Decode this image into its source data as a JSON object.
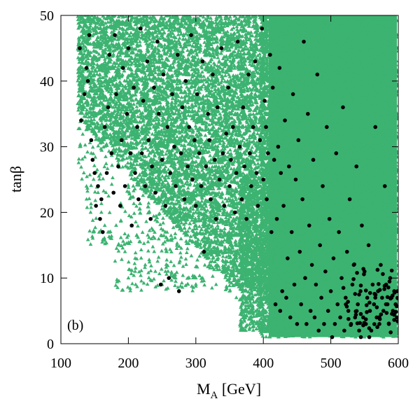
{
  "chart_data": {
    "type": "scatter",
    "title": "",
    "panel_label": "(b)",
    "xlabel": {
      "main": "M",
      "sub": "A",
      "suffix": " [GeV]"
    },
    "ylabel": {
      "main": "tan",
      "suffix": "β"
    },
    "xlim": [
      100,
      600
    ],
    "ylim": [
      0,
      50
    ],
    "x_ticks": [
      100,
      200,
      300,
      400,
      500,
      600
    ],
    "y_ticks": [
      0,
      10,
      20,
      30,
      40,
      50
    ],
    "grid": false,
    "legend": "none",
    "colors": {
      "green": "#3cb371",
      "black": "#000000"
    },
    "series": [
      {
        "marker": "triangle",
        "color": "#3cb371",
        "description_regions": [
          {
            "x": [
              125,
              430
            ],
            "y": [
              25,
              50
            ]
          },
          {
            "x": [
              135,
              430
            ],
            "y": [
              15,
              25
            ]
          },
          {
            "x": [
              180,
              420
            ],
            "y": [
              8,
              15
            ]
          },
          {
            "x": [
              395,
              600
            ],
            "y": [
              1,
              50
            ]
          },
          {
            "x": [
              365,
              430
            ],
            "y": [
              2,
              25
            ]
          }
        ],
        "dense_fill_region": {
          "x": [
            408,
            598
          ],
          "y": [
            1,
            50
          ]
        },
        "points": [
          [
            128,
            45
          ],
          [
            132,
            42
          ],
          [
            136,
            38
          ],
          [
            140,
            33
          ],
          [
            145,
            29
          ],
          [
            150,
            26
          ],
          [
            155,
            23
          ],
          [
            160,
            20
          ],
          [
            165,
            18
          ],
          [
            170,
            17
          ],
          [
            175,
            16
          ],
          [
            185,
            15
          ],
          [
            195,
            14
          ],
          [
            210,
            13
          ],
          [
            225,
            12
          ],
          [
            240,
            11
          ],
          [
            255,
            11
          ],
          [
            270,
            10
          ],
          [
            290,
            10
          ],
          [
            310,
            10
          ],
          [
            330,
            9
          ],
          [
            350,
            8
          ],
          [
            370,
            6
          ],
          [
            380,
            4
          ],
          [
            390,
            3
          ],
          [
            395,
            2
          ],
          [
            200,
            10
          ],
          [
            210,
            11
          ],
          [
            250,
            9
          ],
          [
            300,
            10
          ],
          [
            320,
            12
          ],
          [
            340,
            11
          ],
          [
            360,
            7
          ],
          [
            130,
            34
          ],
          [
            128,
            30
          ],
          [
            134,
            26
          ],
          [
            138,
            22
          ],
          [
            144,
            20
          ],
          [
            148,
            17
          ],
          [
            200,
            48
          ],
          [
            220,
            49
          ],
          [
            260,
            50
          ],
          [
            300,
            49
          ],
          [
            340,
            48
          ],
          [
            380,
            49
          ],
          [
            410,
            50
          ],
          [
            150,
            49
          ],
          [
            170,
            50
          ],
          [
            190,
            47
          ]
        ]
      },
      {
        "marker": "circle",
        "color": "#000000",
        "points": [
          [
            128,
            45
          ],
          [
            130,
            34
          ],
          [
            135,
            38
          ],
          [
            138,
            42
          ],
          [
            140,
            40
          ],
          [
            142,
            47
          ],
          [
            145,
            31
          ],
          [
            147,
            28
          ],
          [
            150,
            26
          ],
          [
            152,
            21
          ],
          [
            155,
            24
          ],
          [
            158,
            19
          ],
          [
            160,
            22
          ],
          [
            162,
            17
          ],
          [
            165,
            33
          ],
          [
            168,
            26
          ],
          [
            170,
            36
          ],
          [
            172,
            44
          ],
          [
            175,
            29
          ],
          [
            178,
            23
          ],
          [
            180,
            47
          ],
          [
            182,
            38
          ],
          [
            185,
            27
          ],
          [
            188,
            21
          ],
          [
            190,
            31
          ],
          [
            192,
            42
          ],
          [
            195,
            24
          ],
          [
            198,
            35
          ],
          [
            200,
            45
          ],
          [
            203,
            29
          ],
          [
            205,
            18
          ],
          [
            208,
            39
          ],
          [
            210,
            26
          ],
          [
            213,
            33
          ],
          [
            215,
            22
          ],
          [
            218,
            48
          ],
          [
            220,
            29
          ],
          [
            222,
            37
          ],
          [
            225,
            24
          ],
          [
            228,
            43
          ],
          [
            230,
            31
          ],
          [
            233,
            19
          ],
          [
            235,
            27
          ],
          [
            238,
            39
          ],
          [
            240,
            23
          ],
          [
            243,
            46
          ],
          [
            245,
            35
          ],
          [
            248,
            9
          ],
          [
            250,
            28
          ],
          [
            252,
            41
          ],
          [
            255,
            21
          ],
          [
            258,
            33
          ],
          [
            260,
            10
          ],
          [
            262,
            26
          ],
          [
            265,
            38
          ],
          [
            268,
            30
          ],
          [
            270,
            24
          ],
          [
            273,
            44
          ],
          [
            275,
            8
          ],
          [
            278,
            29
          ],
          [
            280,
            36
          ],
          [
            283,
            22
          ],
          [
            285,
            40
          ],
          [
            288,
            27
          ],
          [
            290,
            33
          ],
          [
            293,
            47
          ],
          [
            295,
            25
          ],
          [
            298,
            31
          ],
          [
            300,
            21
          ],
          [
            302,
            38
          ],
          [
            305,
            29
          ],
          [
            308,
            24
          ],
          [
            310,
            43
          ],
          [
            312,
            14
          ],
          [
            315,
            27
          ],
          [
            318,
            35
          ],
          [
            320,
            31
          ],
          [
            322,
            22
          ],
          [
            325,
            41
          ],
          [
            328,
            28
          ],
          [
            330,
            19
          ],
          [
            332,
            36
          ],
          [
            335,
            25
          ],
          [
            338,
            45
          ],
          [
            340,
            29
          ],
          [
            342,
            21
          ],
          [
            345,
            32
          ],
          [
            348,
            39
          ],
          [
            350,
            24
          ],
          [
            352,
            28
          ],
          [
            355,
            33
          ],
          [
            358,
            20
          ],
          [
            360,
            26
          ],
          [
            362,
            46
          ],
          [
            365,
            30
          ],
          [
            368,
            22
          ],
          [
            370,
            36
          ],
          [
            372,
            27
          ],
          [
            375,
            19
          ],
          [
            378,
            41
          ],
          [
            380,
            29
          ],
          [
            382,
            24
          ],
          [
            385,
            33
          ],
          [
            388,
            43
          ],
          [
            390,
            26
          ],
          [
            392,
            21
          ],
          [
            395,
            31
          ],
          [
            398,
            48
          ],
          [
            400,
            25
          ],
          [
            402,
            37
          ],
          [
            404,
            33
          ],
          [
            405,
            22
          ],
          [
            407,
            29
          ],
          [
            410,
            44
          ],
          [
            412,
            17
          ],
          [
            414,
            39
          ],
          [
            416,
            28
          ],
          [
            418,
            6
          ],
          [
            420,
            19
          ],
          [
            422,
            30
          ],
          [
            424,
            42
          ],
          [
            425,
            5
          ],
          [
            426,
            26
          ],
          [
            428,
            8
          ],
          [
            430,
            21
          ],
          [
            432,
            34
          ],
          [
            434,
            7
          ],
          [
            436,
            13
          ],
          [
            438,
            27
          ],
          [
            440,
            4
          ],
          [
            442,
            17
          ],
          [
            444,
            38
          ],
          [
            446,
            9
          ],
          [
            448,
            25
          ],
          [
            450,
            3
          ],
          [
            452,
            31
          ],
          [
            454,
            14
          ],
          [
            456,
            6
          ],
          [
            458,
            22
          ],
          [
            460,
            46
          ],
          [
            462,
            10
          ],
          [
            464,
            3
          ],
          [
            466,
            35
          ],
          [
            468,
            18
          ],
          [
            470,
            5
          ],
          [
            472,
            12
          ],
          [
            474,
            28
          ],
          [
            476,
            4
          ],
          [
            478,
            9
          ],
          [
            480,
            41
          ],
          [
            482,
            2
          ],
          [
            484,
            15
          ],
          [
            486,
            7
          ],
          [
            488,
            24
          ],
          [
            490,
            3
          ],
          [
            492,
            11
          ],
          [
            494,
            33
          ],
          [
            496,
            5
          ],
          [
            498,
            19
          ],
          [
            500,
            8
          ],
          [
            502,
            1
          ],
          [
            504,
            13
          ],
          [
            506,
            3
          ],
          [
            508,
            29
          ],
          [
            510,
            6
          ],
          [
            512,
            17
          ],
          [
            514,
            4
          ],
          [
            516,
            10
          ],
          [
            518,
            36
          ],
          [
            520,
            2
          ],
          [
            522,
            7
          ],
          [
            524,
            14
          ],
          [
            526,
            5
          ],
          [
            528,
            22
          ],
          [
            530,
            3
          ],
          [
            532,
            9
          ],
          [
            534,
            12
          ],
          [
            536,
            4
          ],
          [
            538,
            27
          ],
          [
            540,
            6
          ],
          [
            542,
            2
          ],
          [
            544,
            8
          ],
          [
            546,
            18
          ],
          [
            548,
            4
          ],
          [
            550,
            11
          ],
          [
            552,
            3
          ],
          [
            554,
            7
          ],
          [
            556,
            15
          ],
          [
            558,
            5
          ],
          [
            560,
            2
          ],
          [
            562,
            9
          ],
          [
            564,
            6
          ],
          [
            566,
            33
          ],
          [
            568,
            4
          ],
          [
            570,
            8
          ],
          [
            572,
            3
          ],
          [
            574,
            12
          ],
          [
            576,
            7
          ],
          [
            578,
            5
          ],
          [
            580,
            24
          ],
          [
            582,
            9
          ],
          [
            584,
            6
          ],
          [
            586,
            3
          ],
          [
            588,
            10
          ],
          [
            590,
            7
          ],
          [
            592,
            5
          ],
          [
            594,
            8
          ],
          [
            596,
            6
          ],
          [
            598,
            4
          ],
          [
            599,
            7
          ]
        ]
      }
    ]
  }
}
